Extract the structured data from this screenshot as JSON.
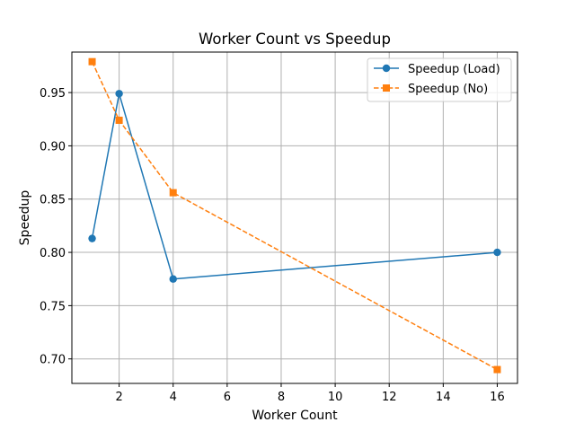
{
  "chart_data": {
    "type": "line",
    "title": "Worker Count vs Speedup",
    "xlabel": "Worker Count",
    "ylabel": "Speedup",
    "xlim": [
      0.25,
      16.75
    ],
    "ylim": [
      0.677,
      0.988
    ],
    "xticks": [
      2,
      4,
      6,
      8,
      10,
      12,
      14,
      16
    ],
    "xtick_labels": [
      "2",
      "4",
      "6",
      "8",
      "10",
      "12",
      "14",
      "16"
    ],
    "yticks": [
      0.7,
      0.75,
      0.8,
      0.85,
      0.9,
      0.95
    ],
    "ytick_labels": [
      "0.70",
      "0.75",
      "0.80",
      "0.85",
      "0.90",
      "0.95"
    ],
    "grid": true,
    "legend_position": "top-right",
    "series": [
      {
        "name": "Speedup (Load)",
        "color": "#1f77b4",
        "line_style": "solid",
        "marker": "circle",
        "x": [
          1,
          2,
          4,
          16
        ],
        "y": [
          0.813,
          0.949,
          0.775,
          0.8
        ]
      },
      {
        "name": "Speedup (No)",
        "color": "#ff7f0e",
        "line_style": "dashed",
        "marker": "square",
        "x": [
          1,
          2,
          4,
          16
        ],
        "y": [
          0.979,
          0.924,
          0.856,
          0.69
        ]
      }
    ]
  }
}
